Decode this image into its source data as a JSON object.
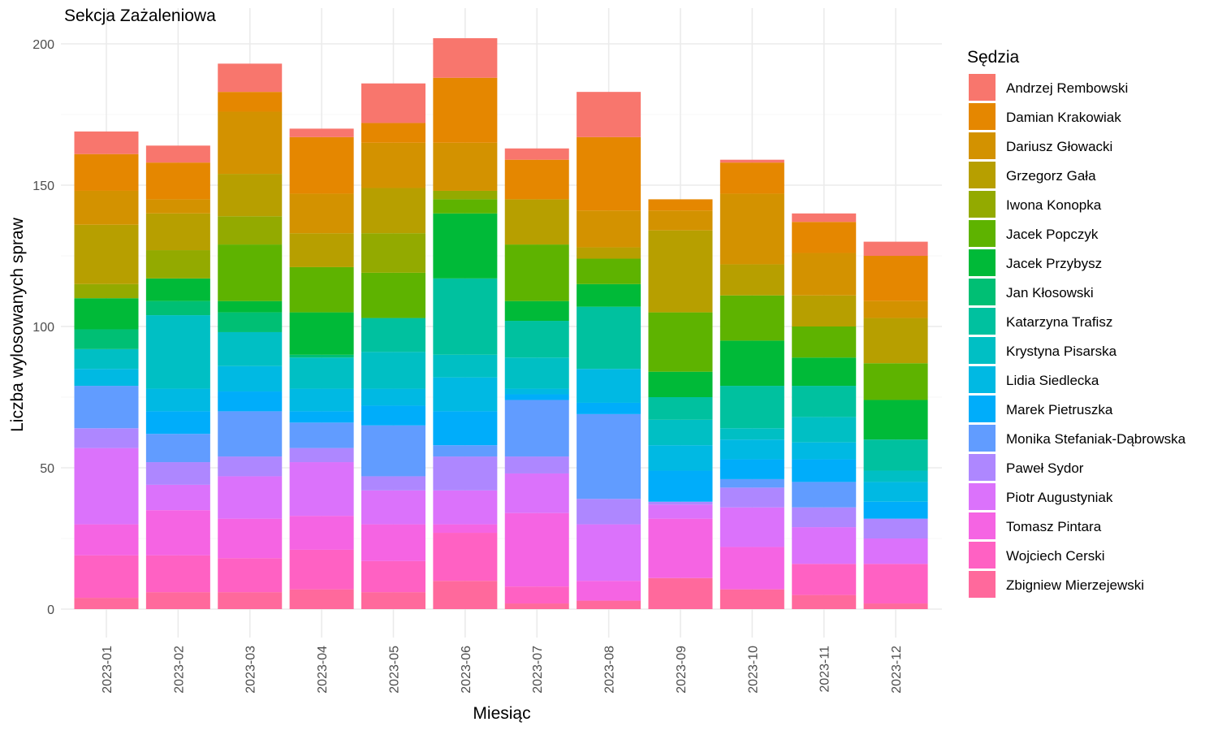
{
  "chart_data": {
    "type": "bar",
    "stacked": true,
    "title": "Sekcja Zażaleniowa",
    "xlabel": "Miesiąc",
    "ylabel": "Liczba wylosowanych spraw",
    "ylim": [
      0,
      210
    ],
    "yticks": [
      0,
      50,
      100,
      150,
      200
    ],
    "grid": true,
    "legend_title": "Sędzia",
    "legend_position": "right",
    "categories": [
      "2023-01",
      "2023-02",
      "2023-03",
      "2023-04",
      "2023-05",
      "2023-06",
      "2023-07",
      "2023-08",
      "2023-09",
      "2023-10",
      "2023-11",
      "2023-12"
    ],
    "series": [
      {
        "name": "Andrzej Rembowski",
        "color": "#F8766D",
        "values": [
          8,
          6,
          10,
          3,
          14,
          14,
          4,
          16,
          0,
          1,
          3,
          5
        ]
      },
      {
        "name": "Damian Krakowiak",
        "color": "#E58700",
        "values": [
          13,
          13,
          7,
          20,
          7,
          23,
          14,
          26,
          4,
          11,
          11,
          16
        ]
      },
      {
        "name": "Dariusz Głowacki",
        "color": "#D39200",
        "values": [
          12,
          5,
          22,
          14,
          16,
          17,
          0,
          13,
          7,
          25,
          15,
          6
        ]
      },
      {
        "name": "Grzegorz Gała",
        "color": "#B79F00",
        "values": [
          21,
          13,
          15,
          12,
          16,
          0,
          16,
          4,
          29,
          11,
          11,
          16
        ]
      },
      {
        "name": "Iwona Konopka",
        "color": "#93AA00",
        "values": [
          5,
          10,
          10,
          0,
          14,
          3,
          0,
          0,
          0,
          0,
          0,
          0
        ]
      },
      {
        "name": "Jacek Popczyk",
        "color": "#5EB300",
        "values": [
          0,
          0,
          20,
          16,
          16,
          5,
          20,
          9,
          21,
          16,
          11,
          13
        ]
      },
      {
        "name": "Jacek Przybysz",
        "color": "#00BA38",
        "values": [
          11,
          8,
          4,
          15,
          0,
          23,
          7,
          8,
          9,
          16,
          10,
          14
        ]
      },
      {
        "name": "Jan Kłosowski",
        "color": "#00BF74",
        "values": [
          7,
          5,
          7,
          1,
          0,
          0,
          0,
          0,
          0,
          0,
          0,
          0
        ]
      },
      {
        "name": "Katarzyna Trafisz",
        "color": "#00C19F",
        "values": [
          0,
          0,
          0,
          0,
          12,
          27,
          13,
          22,
          8,
          15,
          11,
          11
        ]
      },
      {
        "name": "Krystyna Pisarska",
        "color": "#00BFC4",
        "values": [
          7,
          26,
          12,
          11,
          13,
          8,
          11,
          0,
          9,
          4,
          9,
          4
        ]
      },
      {
        "name": "Lidia Siedlecka",
        "color": "#00B9E3",
        "values": [
          6,
          8,
          9,
          8,
          6,
          12,
          2,
          12,
          9,
          7,
          6,
          7
        ]
      },
      {
        "name": "Marek Pietruszka",
        "color": "#00ADFA",
        "values": [
          0,
          8,
          7,
          4,
          7,
          12,
          2,
          4,
          11,
          7,
          8,
          6
        ]
      },
      {
        "name": "Monika Stefaniak-Dąbrowska",
        "color": "#619CFF",
        "values": [
          15,
          10,
          16,
          9,
          18,
          4,
          20,
          30,
          0,
          3,
          9,
          0
        ]
      },
      {
        "name": "Paweł Sydor",
        "color": "#AE87FF",
        "values": [
          7,
          8,
          7,
          5,
          5,
          12,
          6,
          9,
          1,
          7,
          7,
          7
        ]
      },
      {
        "name": "Piotr Augustyniak",
        "color": "#DB72FB",
        "values": [
          27,
          9,
          15,
          19,
          12,
          12,
          14,
          20,
          5,
          14,
          13,
          9
        ]
      },
      {
        "name": "Tomasz Pintara",
        "color": "#F564E3",
        "values": [
          11,
          16,
          14,
          12,
          13,
          3,
          26,
          7,
          21,
          15,
          0,
          0
        ]
      },
      {
        "name": "Wojciech Cerski",
        "color": "#FF61C3",
        "values": [
          15,
          13,
          12,
          14,
          11,
          17,
          6,
          0,
          0,
          0,
          11,
          14
        ]
      },
      {
        "name": "Zbigniew Mierzejewski",
        "color": "#FF699C",
        "values": [
          4,
          6,
          6,
          7,
          6,
          10,
          2,
          3,
          11,
          7,
          5,
          2
        ]
      }
    ]
  }
}
